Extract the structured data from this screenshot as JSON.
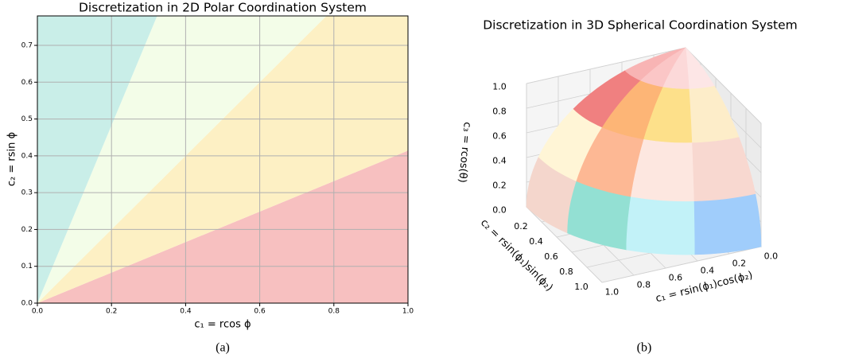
{
  "chart_data": [
    {
      "type": "sector",
      "title": "Discretization in 2D Polar Coordination System",
      "xlabel": "c₁ = rcos ϕ",
      "ylabel": "c₂ = rsin ϕ",
      "angle_edges": [
        0,
        22.5,
        45,
        67.5,
        90
      ],
      "colors": [
        "#f7c0c0",
        "#fdf0c4",
        "#f3fde8",
        "#c9eee8"
      ],
      "xlim": [
        0,
        1
      ],
      "ylim": [
        0,
        0.78
      ],
      "xticks": [
        {
          "value": 0,
          "label": "0.0"
        },
        0.2,
        0.4,
        0.6,
        0.8,
        {
          "value": 1,
          "label": "1.0"
        }
      ],
      "yticks": [
        {
          "value": 0,
          "label": "0.0"
        },
        0.1,
        0.2,
        0.3,
        0.4,
        0.5,
        0.6,
        0.7
      ],
      "grid": true,
      "caption": "(a)"
    },
    {
      "type": "surface",
      "title": "Discretization in 3D Spherical Coordination System",
      "xlabel": "c₁ = rsin(ϕ₁)cos(ϕ₂)",
      "ylabel": "c₂ = rsin(ϕ₁)sin(ϕ₂)",
      "zlabel": "c₃ = rcos(θ)",
      "theta_edges": [
        0,
        22.5,
        45,
        67.5,
        90
      ],
      "phi_edges": [
        0,
        22.5,
        45,
        67.5,
        90
      ],
      "colors": [
        [
          "#f8b4b4",
          "#fbc6c6",
          "#fcd9d9",
          "#fde6e6"
        ],
        [
          "#f08080",
          "#fdb576",
          "#fde08a",
          "#fdedc9"
        ],
        [
          "#fff5d6",
          "#fdb894",
          "#fde7e0",
          "#f8d8d0"
        ],
        [
          "#f4d6cc",
          "#93e0d3",
          "#c2f2f8",
          "#a0cdfb"
        ]
      ],
      "xlim": [
        0,
        1
      ],
      "ylim": [
        0,
        1
      ],
      "zlim": [
        0,
        1
      ],
      "xticks": [
        {
          "value": 0,
          "label": "0.0"
        },
        0.2,
        0.4,
        0.6,
        0.8,
        {
          "value": 1,
          "label": "1.0"
        }
      ],
      "yticks": [
        0.2,
        0.4,
        0.6,
        0.8,
        {
          "value": 1,
          "label": "1.0"
        }
      ],
      "zticks": [
        {
          "value": 0,
          "label": "0.0"
        },
        0.2,
        0.4,
        0.6,
        0.8,
        {
          "value": 1,
          "label": "1.0"
        }
      ],
      "grid": true,
      "caption": "(b)"
    }
  ]
}
